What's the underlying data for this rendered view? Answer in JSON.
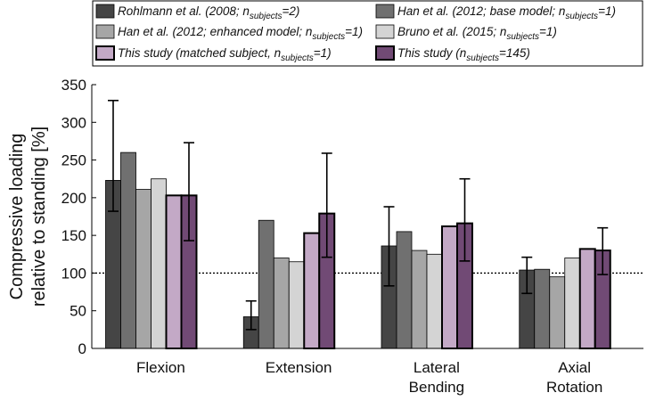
{
  "chart_data": {
    "type": "bar",
    "title": "",
    "xlabel": "",
    "ylabel_lines": [
      "Compressive loading",
      "relative to standing [%]"
    ],
    "ylim": [
      0,
      350
    ],
    "yticks": [
      "0",
      "50",
      "100",
      "150",
      "200",
      "250",
      "300",
      "350"
    ],
    "reference_line": 100,
    "categories": [
      {
        "lines": [
          "Flexion"
        ]
      },
      {
        "lines": [
          "Extension"
        ]
      },
      {
        "lines": [
          "Lateral",
          "Bending"
        ]
      },
      {
        "lines": [
          "Axial",
          "Rotation"
        ]
      }
    ],
    "series": [
      {
        "main": "Rohlmann et al. (2008; n",
        "sub": "subjects",
        "tail": "=2)",
        "color": "#454545",
        "values": [
          223,
          42,
          136,
          104
        ],
        "err_low": [
          182,
          25,
          83,
          73
        ],
        "err_high": [
          329,
          63,
          188,
          121
        ]
      },
      {
        "main": "Han et al. (2012; base model; n",
        "sub": "subjects",
        "tail": "=1)",
        "color": "#707070",
        "values": [
          260,
          170,
          155,
          105
        ],
        "err_low": null,
        "err_high": null
      },
      {
        "main": "Han et al. (2012; enhanced model; n",
        "sub": "subjects",
        "tail": "=1)",
        "color": "#a6a6a6",
        "values": [
          211,
          120,
          130,
          95
        ],
        "err_low": null,
        "err_high": null
      },
      {
        "main": "Bruno et al. (2015; n",
        "sub": "subjects",
        "tail": "=1)",
        "color": "#d4d4d4",
        "values": [
          225,
          115,
          125,
          120
        ],
        "err_low": null,
        "err_high": null
      },
      {
        "main": "This study (matched subject, n",
        "sub": "subjects",
        "tail": "=1)",
        "color": "#c3a9c6",
        "values": [
          203,
          153,
          162,
          132
        ],
        "err_low": null,
        "err_high": null
      },
      {
        "main": "This study (n",
        "sub": "subjects",
        "tail": "=145)",
        "color": "#714a75",
        "values": [
          203,
          179,
          166,
          130
        ],
        "err_low": [
          143,
          121,
          116,
          98
        ],
        "err_high": [
          273,
          259,
          225,
          160
        ]
      }
    ],
    "legend_position": "top"
  }
}
